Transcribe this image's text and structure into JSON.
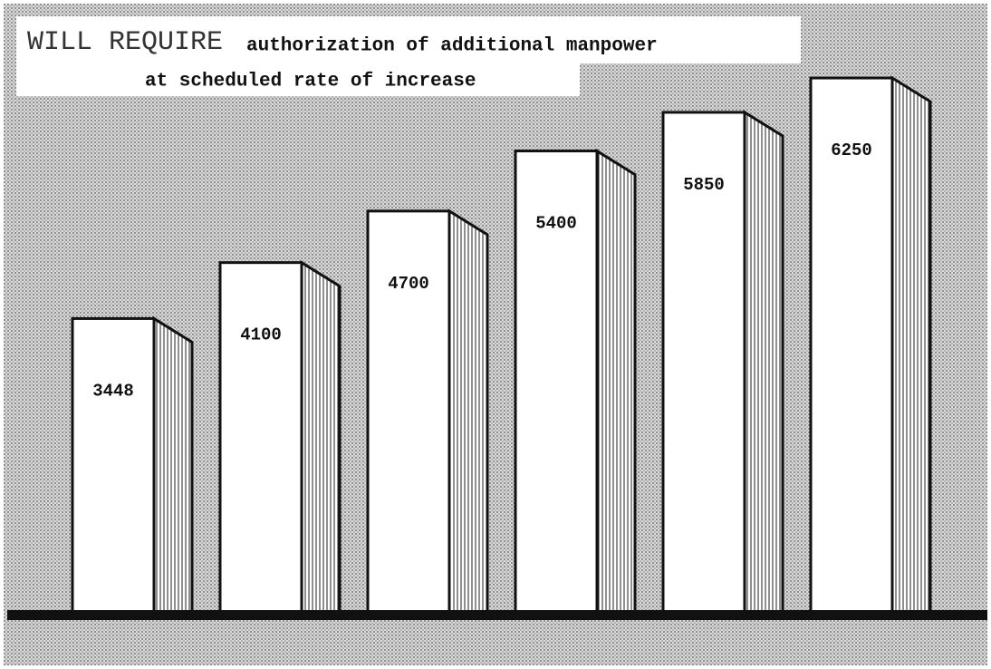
{
  "chart_data": {
    "type": "bar",
    "title": [
      "WILL REQUIRE",
      "authorization of additional manpower",
      "at scheduled rate of increase"
    ],
    "categories": [
      null,
      null,
      null,
      null,
      null,
      null
    ],
    "values": [
      3448,
      4100,
      4700,
      5400,
      5850,
      6250
    ],
    "color": "#ffffff",
    "ylim": [
      0,
      7000
    ]
  }
}
